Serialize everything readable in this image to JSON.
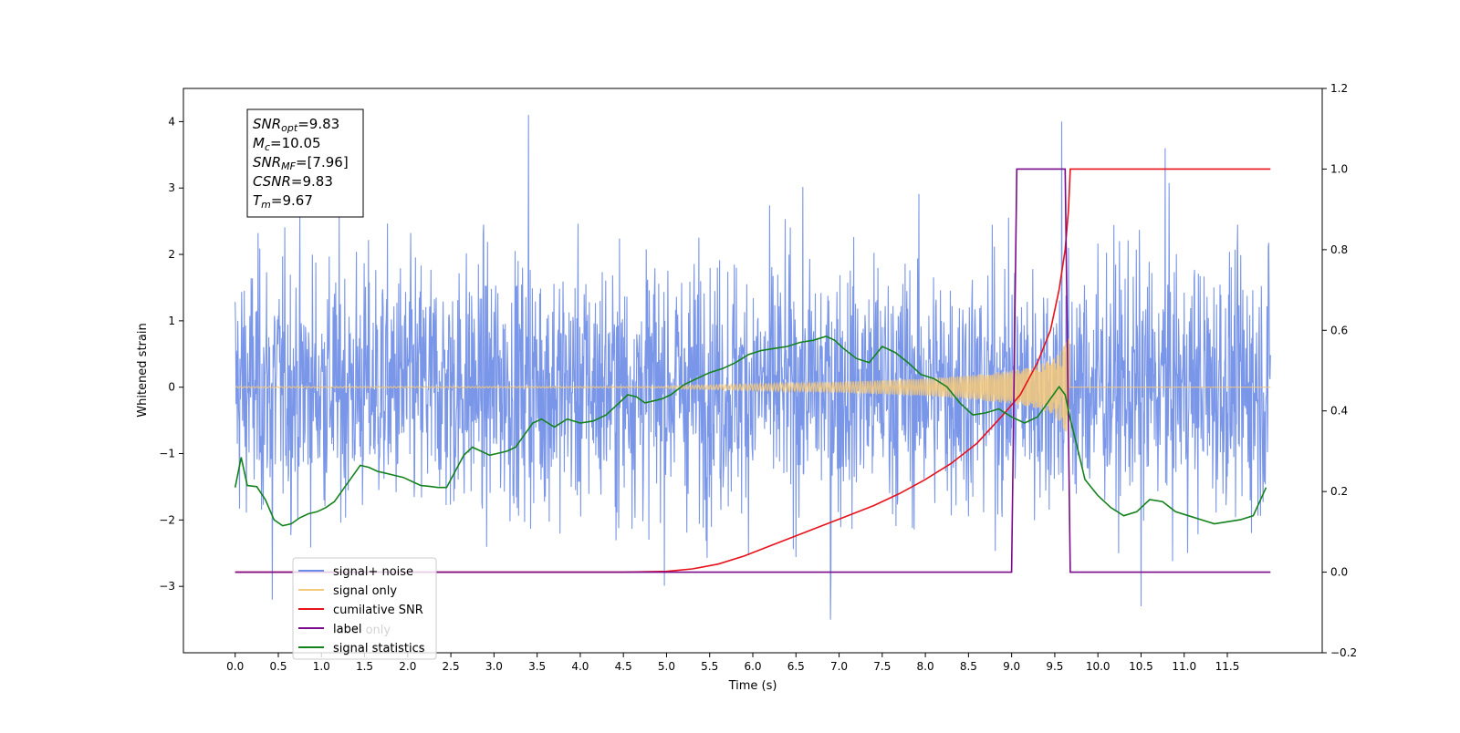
{
  "chart_data": {
    "type": "line",
    "title": "",
    "xlabel": "Time (s)",
    "ylabel": "Whitened strain",
    "xlim": [
      -0.6,
      12.6
    ],
    "ylim": [
      -4,
      4.5
    ],
    "y2lim": [
      -0.2,
      1.2
    ],
    "x_ticks": [
      0.0,
      0.5,
      1.0,
      1.5,
      2.0,
      2.5,
      3.0,
      3.5,
      4.0,
      4.5,
      5.0,
      5.5,
      6.0,
      6.5,
      7.0,
      7.5,
      8.0,
      8.5,
      9.0,
      9.5,
      10.0,
      10.5,
      11.0,
      11.5
    ],
    "x_tick_labels": [
      "0.0",
      "0.5",
      "1.0",
      "1.5",
      "2.0",
      "2.5",
      "3.0",
      "3.5",
      "4.0",
      "4.5",
      "5.0",
      "5.5",
      "6.0",
      "6.5",
      "7.0",
      "7.5",
      "8.0",
      "8.5",
      "9.0",
      "9.5",
      "10.0",
      "10.5",
      "11.0",
      "11.5"
    ],
    "y_ticks": [
      -3,
      -2,
      -1,
      0,
      1,
      2,
      3,
      4
    ],
    "y_tick_labels": [
      "−3",
      "−2",
      "−1",
      "0",
      "1",
      "2",
      "3",
      "4"
    ],
    "y2_ticks": [
      -0.2,
      0.0,
      0.2,
      0.4,
      0.6,
      0.8,
      1.0,
      1.2
    ],
    "y2_tick_labels": [
      "−0.2",
      "0.0",
      "0.2",
      "0.4",
      "0.6",
      "0.8",
      "1.0",
      "1.2"
    ],
    "grid": false,
    "legend_position": "lower-left",
    "series": [
      {
        "name": "signal+ noise",
        "color": "#6b8be6",
        "axis": "left",
        "kind": "noise",
        "x_range": [
          0.0,
          12.0
        ],
        "typical_range": [
          -1.8,
          2.0
        ],
        "peaks": [
          {
            "x": 3.4,
            "y": 4.1
          },
          {
            "x": 9.58,
            "y": 4.0
          },
          {
            "x": 10.78,
            "y": 3.6
          },
          {
            "x": 6.9,
            "y": -3.5
          },
          {
            "x": 10.5,
            "y": -3.3
          },
          {
            "x": 0.43,
            "y": -3.2
          }
        ]
      },
      {
        "name": "signal only",
        "color": "#f5c97a",
        "axis": "left",
        "kind": "chirp",
        "x_range": [
          0.0,
          12.0
        ],
        "envelope": [
          [
            5.0,
            0.02
          ],
          [
            6.0,
            0.05
          ],
          [
            7.0,
            0.08
          ],
          [
            8.0,
            0.13
          ],
          [
            8.5,
            0.18
          ],
          [
            9.0,
            0.25
          ],
          [
            9.3,
            0.33
          ],
          [
            9.5,
            0.45
          ],
          [
            9.6,
            0.6
          ],
          [
            9.67,
            0.8
          ],
          [
            9.69,
            0.0
          ]
        ]
      },
      {
        "name": "cumilative SNR",
        "color": "#e8121a",
        "axis": "right",
        "x": [
          0.0,
          4.5,
          5.0,
          5.3,
          5.6,
          5.9,
          6.2,
          6.5,
          6.8,
          7.1,
          7.4,
          7.7,
          8.0,
          8.3,
          8.6,
          8.9,
          9.1,
          9.3,
          9.45,
          9.55,
          9.62,
          9.66,
          9.68,
          10.0,
          11.0,
          12.0
        ],
        "values": [
          0.0,
          0.0,
          0.002,
          0.008,
          0.02,
          0.04,
          0.065,
          0.09,
          0.115,
          0.14,
          0.165,
          0.195,
          0.23,
          0.27,
          0.32,
          0.39,
          0.44,
          0.52,
          0.6,
          0.7,
          0.8,
          0.9,
          1.0,
          1.0,
          1.0,
          1.0
        ]
      },
      {
        "name": "label",
        "color": "#7a0a8a",
        "axis": "right",
        "x": [
          0.0,
          9.0,
          9.06,
          9.62,
          9.68,
          12.0
        ],
        "values": [
          0.0,
          0.0,
          1.0,
          1.0,
          0.0,
          0.0
        ]
      },
      {
        "name": "signal statistics",
        "color": "#14821c",
        "axis": "right",
        "x": [
          0.0,
          0.07,
          0.14,
          0.25,
          0.35,
          0.45,
          0.55,
          0.65,
          0.75,
          0.85,
          0.95,
          1.05,
          1.15,
          1.25,
          1.35,
          1.45,
          1.55,
          1.65,
          1.75,
          1.85,
          1.95,
          2.05,
          2.15,
          2.25,
          2.35,
          2.45,
          2.55,
          2.65,
          2.75,
          2.85,
          2.95,
          3.05,
          3.15,
          3.25,
          3.35,
          3.45,
          3.55,
          3.7,
          3.85,
          4.0,
          4.15,
          4.3,
          4.45,
          4.55,
          4.65,
          4.75,
          4.85,
          4.95,
          5.05,
          5.2,
          5.35,
          5.5,
          5.65,
          5.8,
          5.95,
          6.1,
          6.25,
          6.4,
          6.55,
          6.7,
          6.85,
          6.95,
          7.05,
          7.2,
          7.35,
          7.5,
          7.65,
          7.8,
          7.95,
          8.1,
          8.25,
          8.4,
          8.55,
          8.7,
          8.85,
          9.0,
          9.15,
          9.3,
          9.45,
          9.55,
          9.62,
          9.68,
          9.75,
          9.85,
          10.0,
          10.15,
          10.3,
          10.45,
          10.6,
          10.75,
          10.9,
          11.05,
          11.2,
          11.35,
          11.5,
          11.65,
          11.8,
          11.95
        ],
        "values": [
          0.21,
          0.285,
          0.215,
          0.212,
          0.18,
          0.13,
          0.115,
          0.12,
          0.135,
          0.145,
          0.15,
          0.16,
          0.175,
          0.205,
          0.235,
          0.265,
          0.26,
          0.25,
          0.245,
          0.24,
          0.235,
          0.225,
          0.215,
          0.213,
          0.21,
          0.21,
          0.25,
          0.29,
          0.31,
          0.3,
          0.29,
          0.295,
          0.3,
          0.31,
          0.34,
          0.37,
          0.38,
          0.36,
          0.38,
          0.37,
          0.375,
          0.39,
          0.42,
          0.44,
          0.435,
          0.42,
          0.425,
          0.43,
          0.44,
          0.465,
          0.48,
          0.495,
          0.505,
          0.52,
          0.54,
          0.55,
          0.555,
          0.56,
          0.57,
          0.575,
          0.585,
          0.575,
          0.555,
          0.53,
          0.52,
          0.56,
          0.545,
          0.52,
          0.49,
          0.48,
          0.46,
          0.42,
          0.39,
          0.395,
          0.405,
          0.385,
          0.37,
          0.385,
          0.43,
          0.46,
          0.44,
          0.38,
          0.32,
          0.23,
          0.19,
          0.16,
          0.14,
          0.15,
          0.18,
          0.175,
          0.15,
          0.14,
          0.13,
          0.12,
          0.125,
          0.13,
          0.14,
          0.21
        ]
      }
    ],
    "annotations": [
      {
        "base": "SNR",
        "sub": "opt",
        "value": "=9.83"
      },
      {
        "base": "M",
        "sub": "c",
        "value": "=10.05"
      },
      {
        "base": "SNR",
        "sub": "MF",
        "value": "=[7.96]"
      },
      {
        "base": "CSNR",
        "sub": "",
        "value": "=9.83"
      },
      {
        "base": "T",
        "sub": "m",
        "value": "=9.67"
      }
    ],
    "legend_items": [
      {
        "label": "signal+ noise",
        "color": "#6b8be6"
      },
      {
        "label": "signal only",
        "color": "#f5c97a"
      },
      {
        "label": "cumilative SNR",
        "color": "#e8121a"
      },
      {
        "label": "label",
        "color": "#7a0a8a"
      },
      {
        "label": "signal statistics",
        "color": "#14821c"
      }
    ],
    "legend_hidden_labels": [
      "label only",
      "signal statistics"
    ]
  }
}
